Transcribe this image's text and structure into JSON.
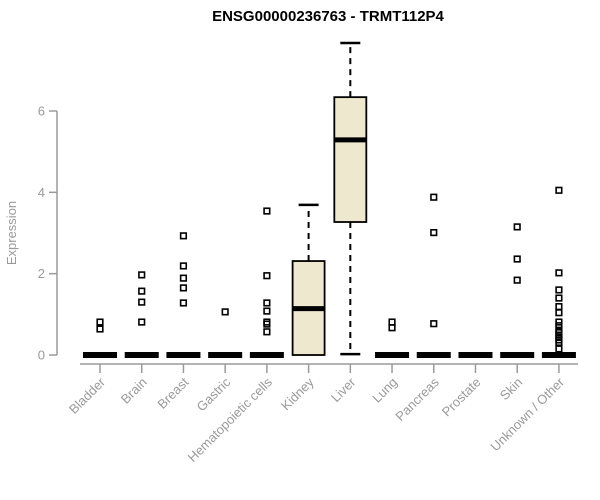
{
  "chart_data": {
    "type": "boxplot",
    "title": "ENSG00000236763 - TRMT112P4",
    "ylabel": "Expression",
    "xlabel": "",
    "yticks": [
      0,
      2,
      4,
      6
    ],
    "ylim": [
      0,
      7.75
    ],
    "grid": false,
    "legend": "none",
    "categories": [
      "Bladder",
      "Brain",
      "Breast",
      "Gastric",
      "Hematopoietic cells",
      "Kidney",
      "Liver",
      "Lung",
      "Pancreas",
      "Prostate",
      "Skin",
      "Unknown / Other"
    ],
    "boxes": [
      {
        "category": "Bladder",
        "collapsed": true,
        "median": 0,
        "outliers": [
          0.81,
          0.64
        ]
      },
      {
        "category": "Brain",
        "collapsed": true,
        "median": 0,
        "outliers": [
          1.97,
          1.57,
          1.3,
          0.81
        ]
      },
      {
        "category": "Breast",
        "collapsed": true,
        "median": 0,
        "outliers": [
          2.93,
          2.19,
          1.89,
          1.65,
          1.28
        ]
      },
      {
        "category": "Gastric",
        "collapsed": true,
        "median": 0,
        "outliers": [
          1.06
        ]
      },
      {
        "category": "Hematopoietic cells",
        "collapsed": true,
        "median": 0,
        "outliers": [
          3.54,
          1.95,
          1.28,
          1.08,
          0.81,
          0.76,
          0.57
        ]
      },
      {
        "category": "Kidney",
        "collapsed": false,
        "q1": 0.0,
        "median": 1.14,
        "q3": 2.31,
        "whisker_low": null,
        "whisker_high": 3.69,
        "outliers": []
      },
      {
        "category": "Liver",
        "collapsed": false,
        "q1": 3.27,
        "median": 5.29,
        "q3": 6.34,
        "whisker_low": 0.02,
        "whisker_high": 7.67,
        "outliers": []
      },
      {
        "category": "Lung",
        "collapsed": true,
        "median": 0,
        "outliers": [
          0.81,
          0.67
        ]
      },
      {
        "category": "Pancreas",
        "collapsed": true,
        "median": 0,
        "outliers": [
          3.88,
          3.01,
          0.77
        ]
      },
      {
        "category": "Prostate",
        "collapsed": true,
        "median": 0,
        "outliers": []
      },
      {
        "category": "Skin",
        "collapsed": true,
        "median": 0,
        "outliers": [
          3.15,
          2.36,
          1.84
        ]
      },
      {
        "category": "Unknown / Other",
        "collapsed": true,
        "median": 0,
        "outliers": [
          4.05,
          2.02,
          1.6,
          1.4,
          1.19,
          1.04,
          0.81,
          0.72,
          0.61,
          0.55,
          0.49,
          0.43,
          0.37,
          0.31,
          0.15
        ]
      }
    ],
    "colors": {
      "box_fill": "#EEE8CE",
      "box_stroke": "#000000",
      "median": "#000000",
      "whisker": "#000000",
      "outlier_stroke": "#000000",
      "axis": "#9a9a9a",
      "tick_label": "#9a9a9a",
      "title": "#000000"
    }
  }
}
